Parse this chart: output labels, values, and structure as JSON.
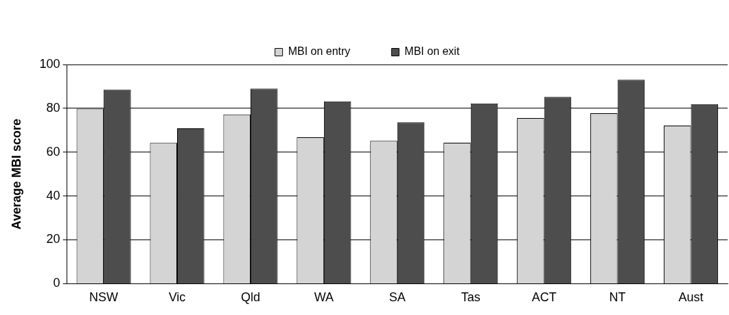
{
  "chart_data": {
    "type": "bar",
    "ylabel": "Average MBI score",
    "categories": [
      "NSW",
      "Vic",
      "Qld",
      "WA",
      "SA",
      "Tas",
      "ACT",
      "NT",
      "Aust"
    ],
    "series": [
      {
        "name": "MBI on entry",
        "color": "#d4d4d4",
        "values": [
          79.8,
          64.2,
          77.2,
          66.8,
          65.2,
          64.3,
          75.6,
          77.8,
          72.1
        ]
      },
      {
        "name": "MBI on exit",
        "color": "#4d4d4d",
        "values": [
          88.6,
          70.9,
          89.0,
          83.2,
          73.6,
          82.2,
          85.2,
          93.0,
          81.9
        ]
      }
    ],
    "ylim": [
      0,
      100
    ],
    "yticks": [
      0,
      20,
      40,
      60,
      80,
      100
    ],
    "grid": "y",
    "legend": "top"
  }
}
